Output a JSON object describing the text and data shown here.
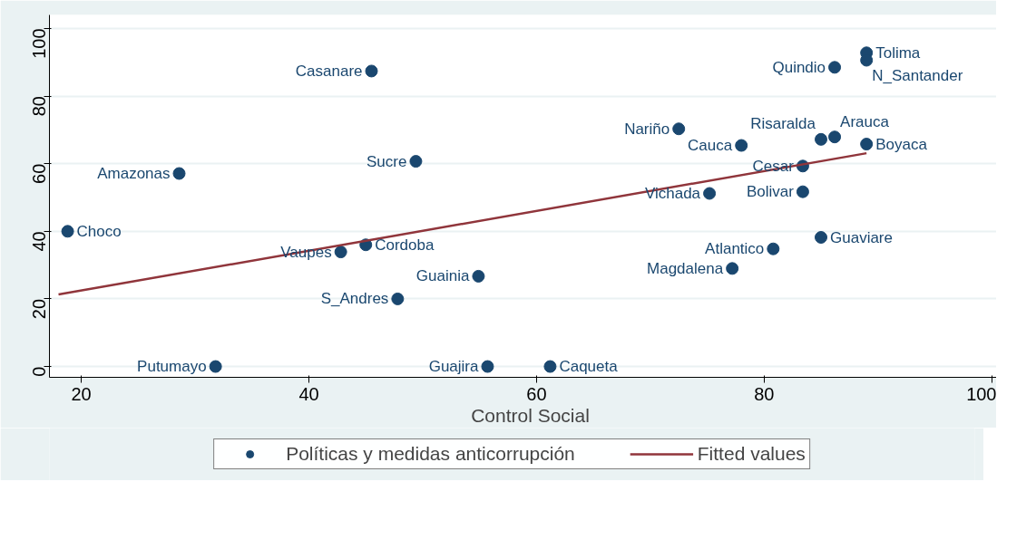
{
  "chart_data": {
    "type": "scatter",
    "xlabel": "Control Social",
    "xlim": [
      17.2,
      101.7
    ],
    "ylim": [
      -3.2,
      104
    ],
    "xticks": [
      20,
      40,
      60,
      80,
      100
    ],
    "yticks": [
      0,
      20,
      40,
      60,
      80,
      100
    ],
    "grid": "y",
    "legend": "bottom",
    "marker": "circle",
    "series": [
      {
        "name": "Políticas y medidas anticorrupción",
        "color": "#1a476f",
        "x": [
          18.8,
          28.6,
          31.8,
          45.5,
          49.4,
          45.0,
          42.8,
          47.8,
          54.9,
          55.7,
          61.2,
          72.5,
          75.2,
          77.2,
          78.0,
          80.8,
          83.4,
          83.4,
          85.0,
          85.0,
          86.2,
          86.2,
          89.0,
          89.0,
          89.0
        ],
        "values": [
          40.0,
          57.1,
          0,
          87.4,
          60.7,
          36.0,
          33.9,
          20.0,
          26.7,
          0,
          0,
          70.3,
          51.2,
          29.0,
          65.4,
          34.8,
          51.7,
          59.3,
          38.2,
          67.2,
          67.9,
          88.5,
          92.8,
          90.6,
          65.8
        ]
      },
      {
        "name": "Fitted values",
        "type": "line",
        "color": "#90353b",
        "line_style": "solid",
        "marker": "none",
        "x": [
          18.0,
          89.0
        ],
        "values": [
          21.3,
          63.1
        ]
      }
    ],
    "annotations": [
      {
        "text": "Choco",
        "x": 18.8,
        "y": 40.0
      },
      {
        "text": "Amazonas",
        "x": 28.6,
        "y": 57.1
      },
      {
        "text": "Putumayo",
        "x": 31.8,
        "y": 0
      },
      {
        "text": "Casanare",
        "x": 45.5,
        "y": 87.4
      },
      {
        "text": "Sucre",
        "x": 49.4,
        "y": 60.7
      },
      {
        "text": "Cordoba",
        "x": 45.0,
        "y": 36.0
      },
      {
        "text": "Vaupes",
        "x": 42.8,
        "y": 33.9
      },
      {
        "text": "S_Andres",
        "x": 47.8,
        "y": 20.0
      },
      {
        "text": "Guainia",
        "x": 54.9,
        "y": 26.7
      },
      {
        "text": "Guajira",
        "x": 55.7,
        "y": 0
      },
      {
        "text": "Caqueta",
        "x": 61.2,
        "y": 0
      },
      {
        "text": "Nariño",
        "x": 72.5,
        "y": 70.3
      },
      {
        "text": "Vichada",
        "x": 75.2,
        "y": 51.2
      },
      {
        "text": "Magdalena",
        "x": 77.2,
        "y": 29.0
      },
      {
        "text": "Cauca",
        "x": 78.0,
        "y": 65.4
      },
      {
        "text": "Atlantico",
        "x": 80.8,
        "y": 34.8
      },
      {
        "text": "Bolivar",
        "x": 83.4,
        "y": 51.7
      },
      {
        "text": "Cesar",
        "x": 83.4,
        "y": 59.3
      },
      {
        "text": "Guaviare",
        "x": 85.0,
        "y": 38.2
      },
      {
        "text": "Risaralda",
        "x": 85.0,
        "y": 67.2
      },
      {
        "text": "Arauca",
        "x": 86.2,
        "y": 67.9
      },
      {
        "text": "Quindio",
        "x": 86.2,
        "y": 88.5
      },
      {
        "text": "Tolima",
        "x": 89.0,
        "y": 92.8
      },
      {
        "text": "N_Santander",
        "x": 89.0,
        "y": 90.6
      },
      {
        "text": "Boyaca",
        "x": 89.0,
        "y": 65.8
      }
    ]
  }
}
